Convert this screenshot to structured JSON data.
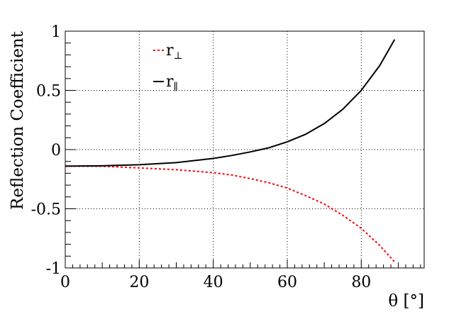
{
  "chart_data": {
    "type": "line",
    "xlabel": "θ [°]",
    "ylabel": "Reflection Coefficient",
    "xlim": [
      0,
      97
    ],
    "ylim": [
      -1,
      1
    ],
    "x_ticks": [
      "0",
      "20",
      "40",
      "60",
      "80"
    ],
    "y_ticks": [
      "-1",
      "-0.5",
      "0",
      "0.5",
      "1"
    ],
    "grid": true,
    "legend_position": "top-left",
    "series": [
      {
        "name": "r⊥",
        "legend_base": "r",
        "legend_sub": "⊥",
        "color": "#ff0000",
        "style": "dotted",
        "x": [
          0,
          10,
          20,
          30,
          40,
          45,
          50,
          55,
          60,
          65,
          70,
          75,
          80,
          85,
          89
        ],
        "y": [
          -0.14,
          -0.141,
          -0.155,
          -0.17,
          -0.195,
          -0.215,
          -0.245,
          -0.28,
          -0.325,
          -0.39,
          -0.46,
          -0.555,
          -0.665,
          -0.81,
          -0.95
        ]
      },
      {
        "name": "r∥",
        "legend_base": "r",
        "legend_sub": "∥",
        "color": "#000000",
        "style": "solid",
        "x": [
          0,
          10,
          20,
          30,
          40,
          45,
          50,
          55,
          60,
          65,
          70,
          75,
          80,
          85,
          89
        ],
        "y": [
          -0.14,
          -0.137,
          -0.128,
          -0.11,
          -0.075,
          -0.05,
          -0.02,
          0.015,
          0.065,
          0.13,
          0.22,
          0.34,
          0.5,
          0.71,
          0.93
        ]
      }
    ]
  }
}
